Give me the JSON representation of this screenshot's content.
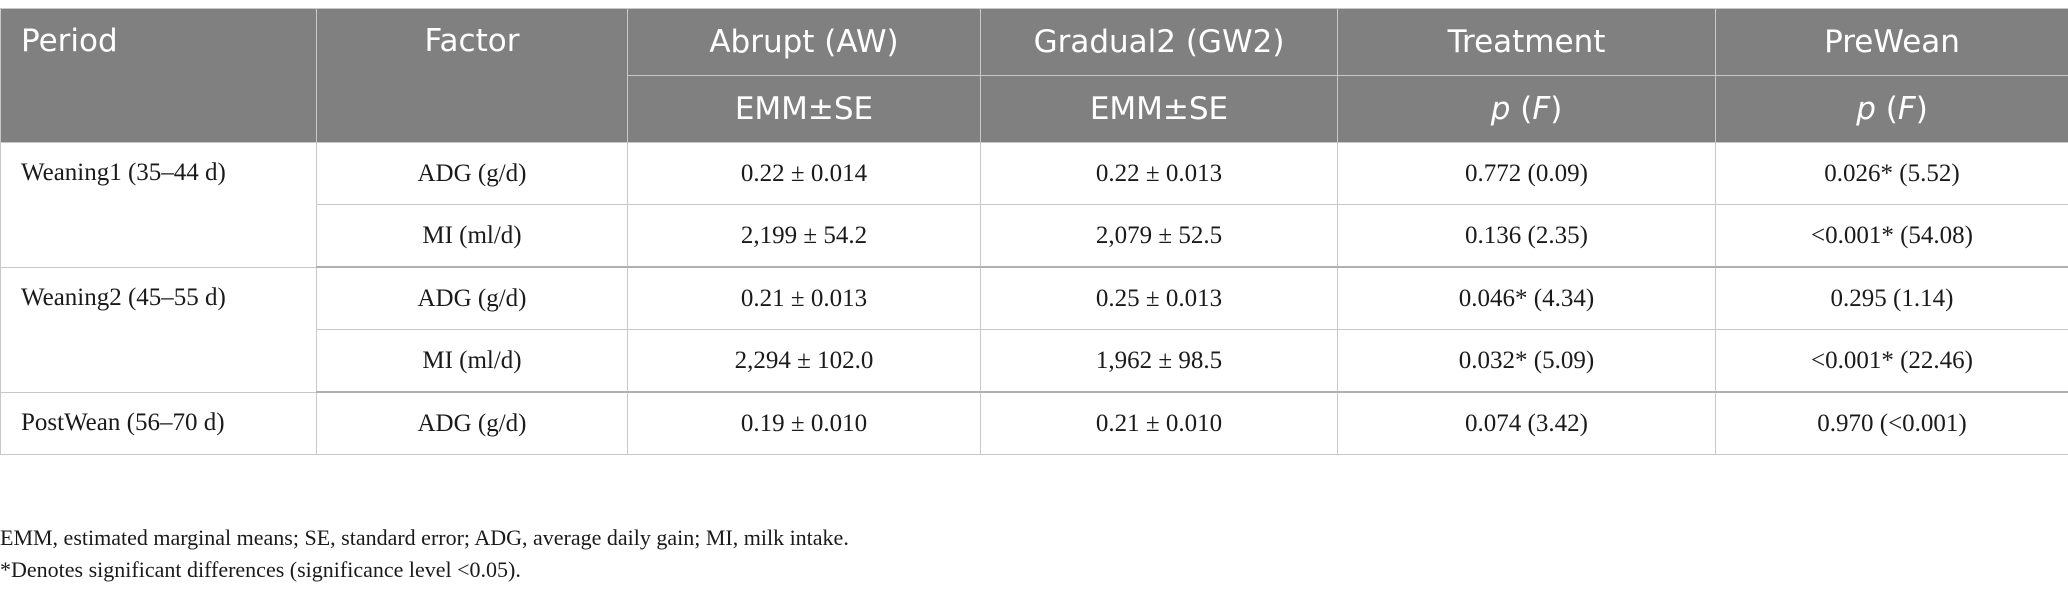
{
  "table": {
    "headers": {
      "period": "Period",
      "factor": "Factor",
      "abrupt": "Abrupt (AW)",
      "gradual2": "Gradual2 (GW2)",
      "treatment": "Treatment",
      "prewean": "PreWean",
      "abrupt_sub": "EMM±SE",
      "gradual2_sub": "EMM±SE",
      "treatment_sub": {
        "p": "p",
        "f": "F"
      },
      "prewean_sub": {
        "p": "p",
        "f": "F"
      }
    },
    "groups": [
      {
        "period": "Weaning1 (35–44 d)",
        "rows": [
          {
            "factor": "ADG (g/d)",
            "aw": "0.22 ± 0.014",
            "gw2": "0.22 ± 0.013",
            "treatment": "0.772 (0.09)",
            "prewean": "0.026* (5.52)"
          },
          {
            "factor": "MI (ml/d)",
            "aw": "2,199 ± 54.2",
            "gw2": "2,079 ± 52.5",
            "treatment": "0.136 (2.35)",
            "prewean": "<0.001* (54.08)"
          }
        ]
      },
      {
        "period": "Weaning2 (45–55 d)",
        "rows": [
          {
            "factor": "ADG (g/d)",
            "aw": "0.21 ± 0.013",
            "gw2": "0.25 ± 0.013",
            "treatment": "0.046* (4.34)",
            "prewean": "0.295 (1.14)"
          },
          {
            "factor": "MI (ml/d)",
            "aw": "2,294 ± 102.0",
            "gw2": "1,962 ± 98.5",
            "treatment": "0.032* (5.09)",
            "prewean": "<0.001* (22.46)"
          }
        ]
      },
      {
        "period": "PostWean (56–70 d)",
        "rows": [
          {
            "factor": "ADG (g/d)",
            "aw": "0.19 ± 0.010",
            "gw2": "0.21 ± 0.010",
            "treatment": "0.074 (3.42)",
            "prewean": "0.970 (<0.001)"
          }
        ]
      }
    ]
  },
  "footnotes": [
    "EMM, estimated marginal means; SE, standard error; ADG, average daily gain; MI, milk intake.",
    "*Denotes significant differences (significance level <0.05)."
  ],
  "colors": {
    "header_bg": "#808080",
    "header_text": "#ffffff",
    "grid": "#c8c8c8"
  }
}
